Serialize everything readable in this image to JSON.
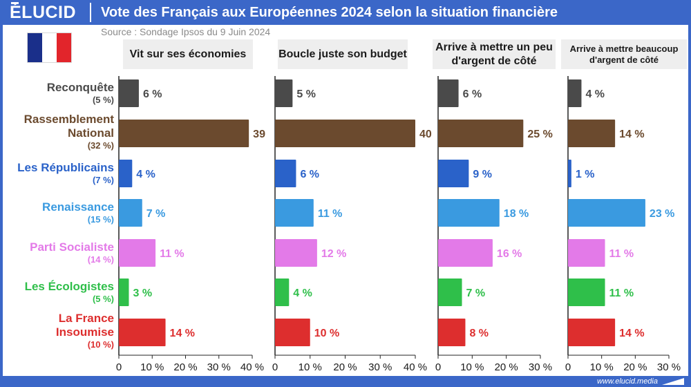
{
  "header": {
    "logo": "ÉLUCID",
    "title": "Vote des Français aux Européennes 2024 selon la situation financière"
  },
  "source": "Source : Sondage Ipsos du 9 Juin 2024",
  "footer": {
    "url": "www.elucid.media"
  },
  "flag": {
    "colors": [
      "#1a2f8a",
      "#ffffff",
      "#e2252b"
    ]
  },
  "parties": [
    {
      "name": "Reconquête",
      "overall": "(5 %)",
      "color": "#4a4a4a"
    },
    {
      "name": "Rassemblement National",
      "overall": "(32 %)",
      "color": "#6b4a2e"
    },
    {
      "name": "Les Républicains",
      "overall": "(7 %)",
      "color": "#2a62c9"
    },
    {
      "name": "Renaissance",
      "overall": "(15 %)",
      "color": "#3a9ae0"
    },
    {
      "name": "Parti Socialiste",
      "overall": "(14 %)",
      "color": "#e37ae8"
    },
    {
      "name": "Les Écologistes",
      "overall": "(5 %)",
      "color": "#2fbf4a"
    },
    {
      "name": "La France Insoumise",
      "overall": "(10 %)",
      "color": "#dd2e2e"
    }
  ],
  "chart_data": [
    {
      "type": "bar",
      "title": "Vit sur ses économies",
      "categories": [
        "Reconquête",
        "Rassemblement National",
        "Les Républicains",
        "Renaissance",
        "Parti Socialiste",
        "Les Écologistes",
        "La France Insoumise"
      ],
      "values": [
        6,
        39,
        4,
        7,
        11,
        3,
        14
      ],
      "labels": [
        "6 %",
        "39",
        "4 %",
        "7 %",
        "11 %",
        "3 %",
        "14 %"
      ],
      "xlim": [
        0,
        40
      ],
      "ticks": [
        0,
        10,
        20,
        30,
        40
      ],
      "tick_labels": [
        "0",
        "10 %",
        "20 %",
        "30 %",
        "40 %"
      ]
    },
    {
      "type": "bar",
      "title": "Boucle juste son budget",
      "categories": [
        "Reconquête",
        "Rassemblement National",
        "Les Républicains",
        "Renaissance",
        "Parti Socialiste",
        "Les Écologistes",
        "La France Insoumise"
      ],
      "values": [
        5,
        40,
        6,
        11,
        12,
        4,
        10
      ],
      "labels": [
        "5 %",
        "40",
        "6 %",
        "11 %",
        "12 %",
        "4 %",
        "10 %"
      ],
      "xlim": [
        0,
        40
      ],
      "ticks": [
        0,
        10,
        20,
        30,
        40
      ],
      "tick_labels": [
        "0",
        "10 %",
        "20 %",
        "30 %",
        "40 %"
      ]
    },
    {
      "type": "bar",
      "title": "Arrive à mettre un peu d'argent de côté",
      "categories": [
        "Reconquête",
        "Rassemblement National",
        "Les Républicains",
        "Renaissance",
        "Parti Socialiste",
        "Les Écologistes",
        "La France Insoumise"
      ],
      "values": [
        6,
        25,
        9,
        18,
        16,
        7,
        8
      ],
      "labels": [
        "6 %",
        "25 %",
        "9 %",
        "18 %",
        "16 %",
        "7 %",
        "8 %"
      ],
      "xlim": [
        0,
        30
      ],
      "ticks": [
        0,
        10,
        20,
        30
      ],
      "tick_labels": [
        "0",
        "10 %",
        "20 %",
        "30 %"
      ]
    },
    {
      "type": "bar",
      "title": "Arrive à mettre beaucoup d'argent de côté",
      "categories": [
        "Reconquête",
        "Rassemblement National",
        "Les Républicains",
        "Renaissance",
        "Parti Socialiste",
        "Les Écologistes",
        "La France Insoumise"
      ],
      "values": [
        4,
        14,
        1,
        23,
        11,
        11,
        14
      ],
      "labels": [
        "4 %",
        "14 %",
        "1 %",
        "23 %",
        "11 %",
        "11 %",
        "14 %"
      ],
      "xlim": [
        0,
        30
      ],
      "ticks": [
        0,
        10,
        20,
        30
      ],
      "tick_labels": [
        "0",
        "10 %",
        "20 %",
        "30 %"
      ]
    }
  ]
}
